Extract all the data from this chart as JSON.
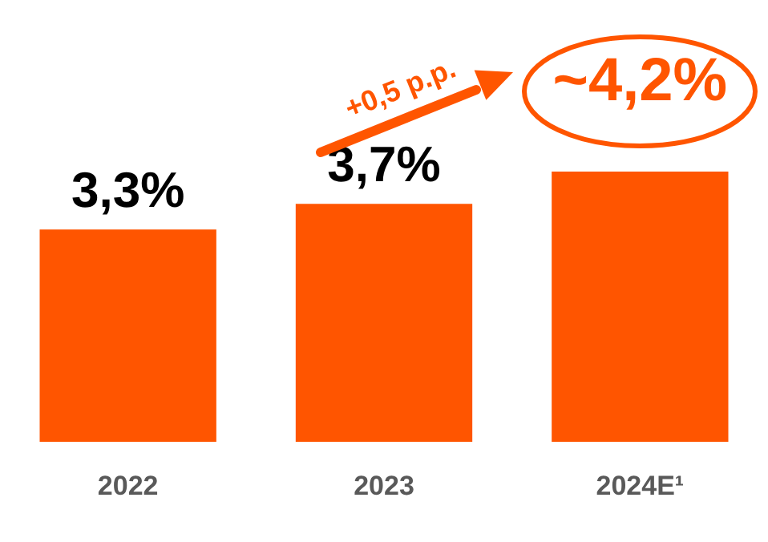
{
  "chart_data": {
    "type": "bar",
    "categories": [
      "2022",
      "2023",
      "2024E¹"
    ],
    "values": [
      3.3,
      3.7,
      4.2
    ],
    "color": "#ff5500",
    "value_labels": [
      "3,3%",
      "3,7%",
      "~4,2%"
    ],
    "tick_labels": "x",
    "grid": false,
    "legend": false,
    "annotations": [
      "+0,5 p.p."
    ]
  }
}
